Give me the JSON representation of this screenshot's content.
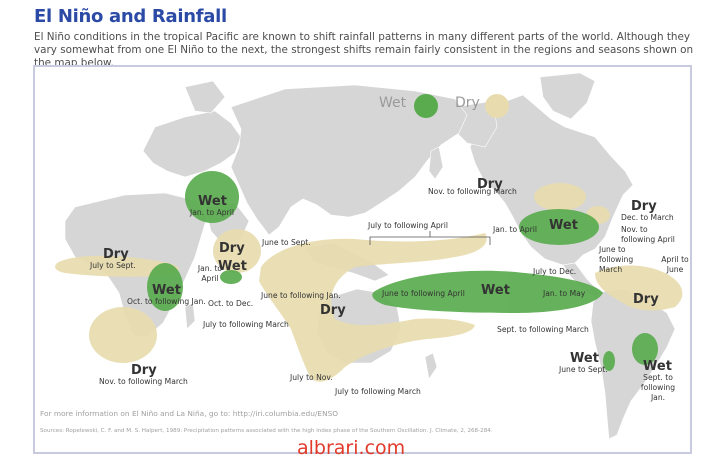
{
  "header": {
    "title": "El Niño and Rainfall",
    "intro": "El Niño conditions in the tropical Pacific are known to shift rainfall patterns in many different parts of the world. Although they vary somewhat from one El Niño to the next, the strongest shifts remain fairly consistent in the regions and seasons shown on the map below."
  },
  "legend": {
    "wet": "Wet",
    "dry": "Dry"
  },
  "colors": {
    "wet": "#5aab4e",
    "dry": "#e8dcae",
    "land": "#d6d6d6",
    "ocean": "#ffffff",
    "title": "#2b4aa6"
  },
  "regions": {
    "africa_west_dry": {
      "kind": "Dry",
      "season": "July to Sept."
    },
    "east_africa_wet": {
      "kind": "Wet",
      "season": "Oct. to following Jan."
    },
    "southern_africa_dry": {
      "kind": "Dry",
      "season": "Nov. to following March"
    },
    "central_asia_wet": {
      "kind": "Wet",
      "season": "Jan. to April"
    },
    "india_dry": {
      "kind": "Dry",
      "season": "June to Sept."
    },
    "sri_lanka_wet": {
      "kind": "Wet",
      "season": "Oct. to Dec.",
      "season2": "Jan. to April"
    },
    "maritime_dry": {
      "kind": "Dry",
      "season": "June to following Jan.",
      "season2": "July to following March"
    },
    "pacific_wet": {
      "kind": "Wet",
      "season": "June to following April",
      "season2": "Jan. to May",
      "bracket": "July to following April"
    },
    "australia_dry": {
      "season": "July to Nov.",
      "season2": "July to following March",
      "season3": "Sept. to following March"
    },
    "canada_dry": {
      "kind": "Dry",
      "season": "Nov. to following March"
    },
    "us_wet": {
      "kind": "Wet",
      "season": "Jan. to April",
      "season2": "Nov. to following April"
    },
    "east_us_dry": {
      "kind": "Dry",
      "season": "Dec. to March"
    },
    "central_america": {
      "season": "July to Dec.",
      "season2": "June to following March",
      "season3": "April to June"
    },
    "south_america_dry": {
      "kind": "Dry"
    },
    "chile_wet": {
      "kind": "Wet",
      "season": "June to Sept."
    },
    "argentina_wet": {
      "kind": "Wet",
      "season": "Sept. to following Jan."
    }
  },
  "footer": {
    "more_info": "For more information on El Niño and La Niña, go to: http://iri.columbia.edu/ENSO",
    "sources": "Sources: Ropelewski, C. F. and M. S. Halpert, 1989: Precipitation patterns associated with the high index phase of the Southern Oscillation. J. Climate, 2, 268-284."
  },
  "watermark": "albrari.com"
}
